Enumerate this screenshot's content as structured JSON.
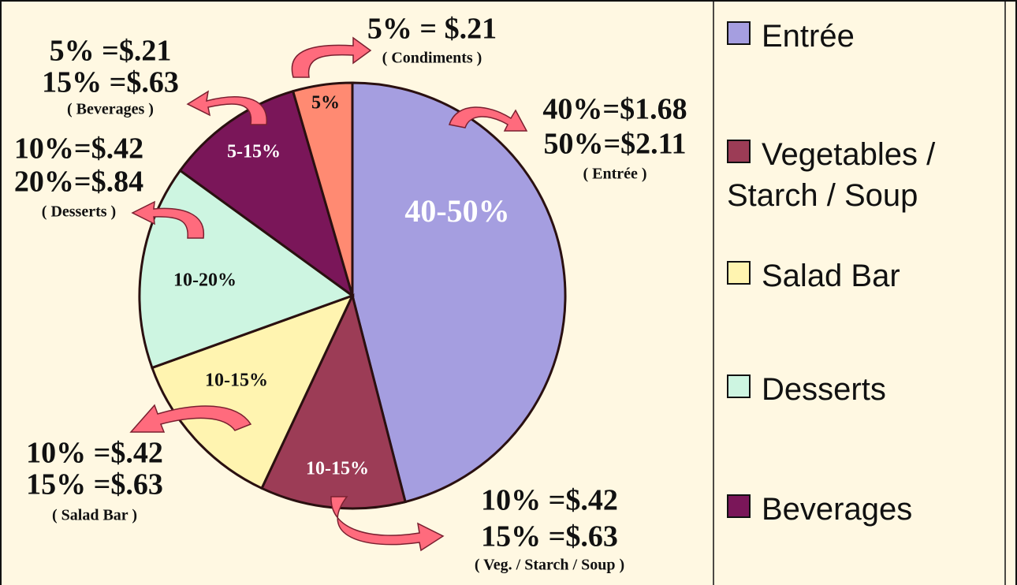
{
  "chart_data": {
    "type": "pie",
    "categories": [
      "Entrée",
      "Vegetables / Starch / Soup",
      "Salad Bar",
      "Desserts",
      "Beverages",
      null
    ],
    "values": [
      46,
      11,
      12.5,
      15.5,
      10.5,
      4.5
    ],
    "colors": [
      "#a59ee0",
      "#9c3c56",
      "#fff4b0",
      "#cdf5e1",
      "#7a1659",
      "#ff8a72"
    ],
    "range_labels": [
      "40-50%",
      "10-15%",
      "10-15%",
      "10-20%",
      "5-15%",
      "5%"
    ],
    "annotations": [
      [
        "40%=$1.68",
        "50%=$2.11",
        "( Entrée )"
      ],
      [
        "10% =$.42",
        "15% =$.63",
        "( Veg. / Starch / Soup )"
      ],
      [
        "10% =$.42",
        "15% =$.63",
        "( Salad Bar )"
      ],
      [
        "10%=$.42",
        "20%=$.84",
        "( Desserts )"
      ],
      [
        "5% =$.21",
        "15% =$.63",
        "( Beverages )"
      ],
      [
        "5% = $.21",
        "( Condiments )"
      ]
    ]
  }
}
